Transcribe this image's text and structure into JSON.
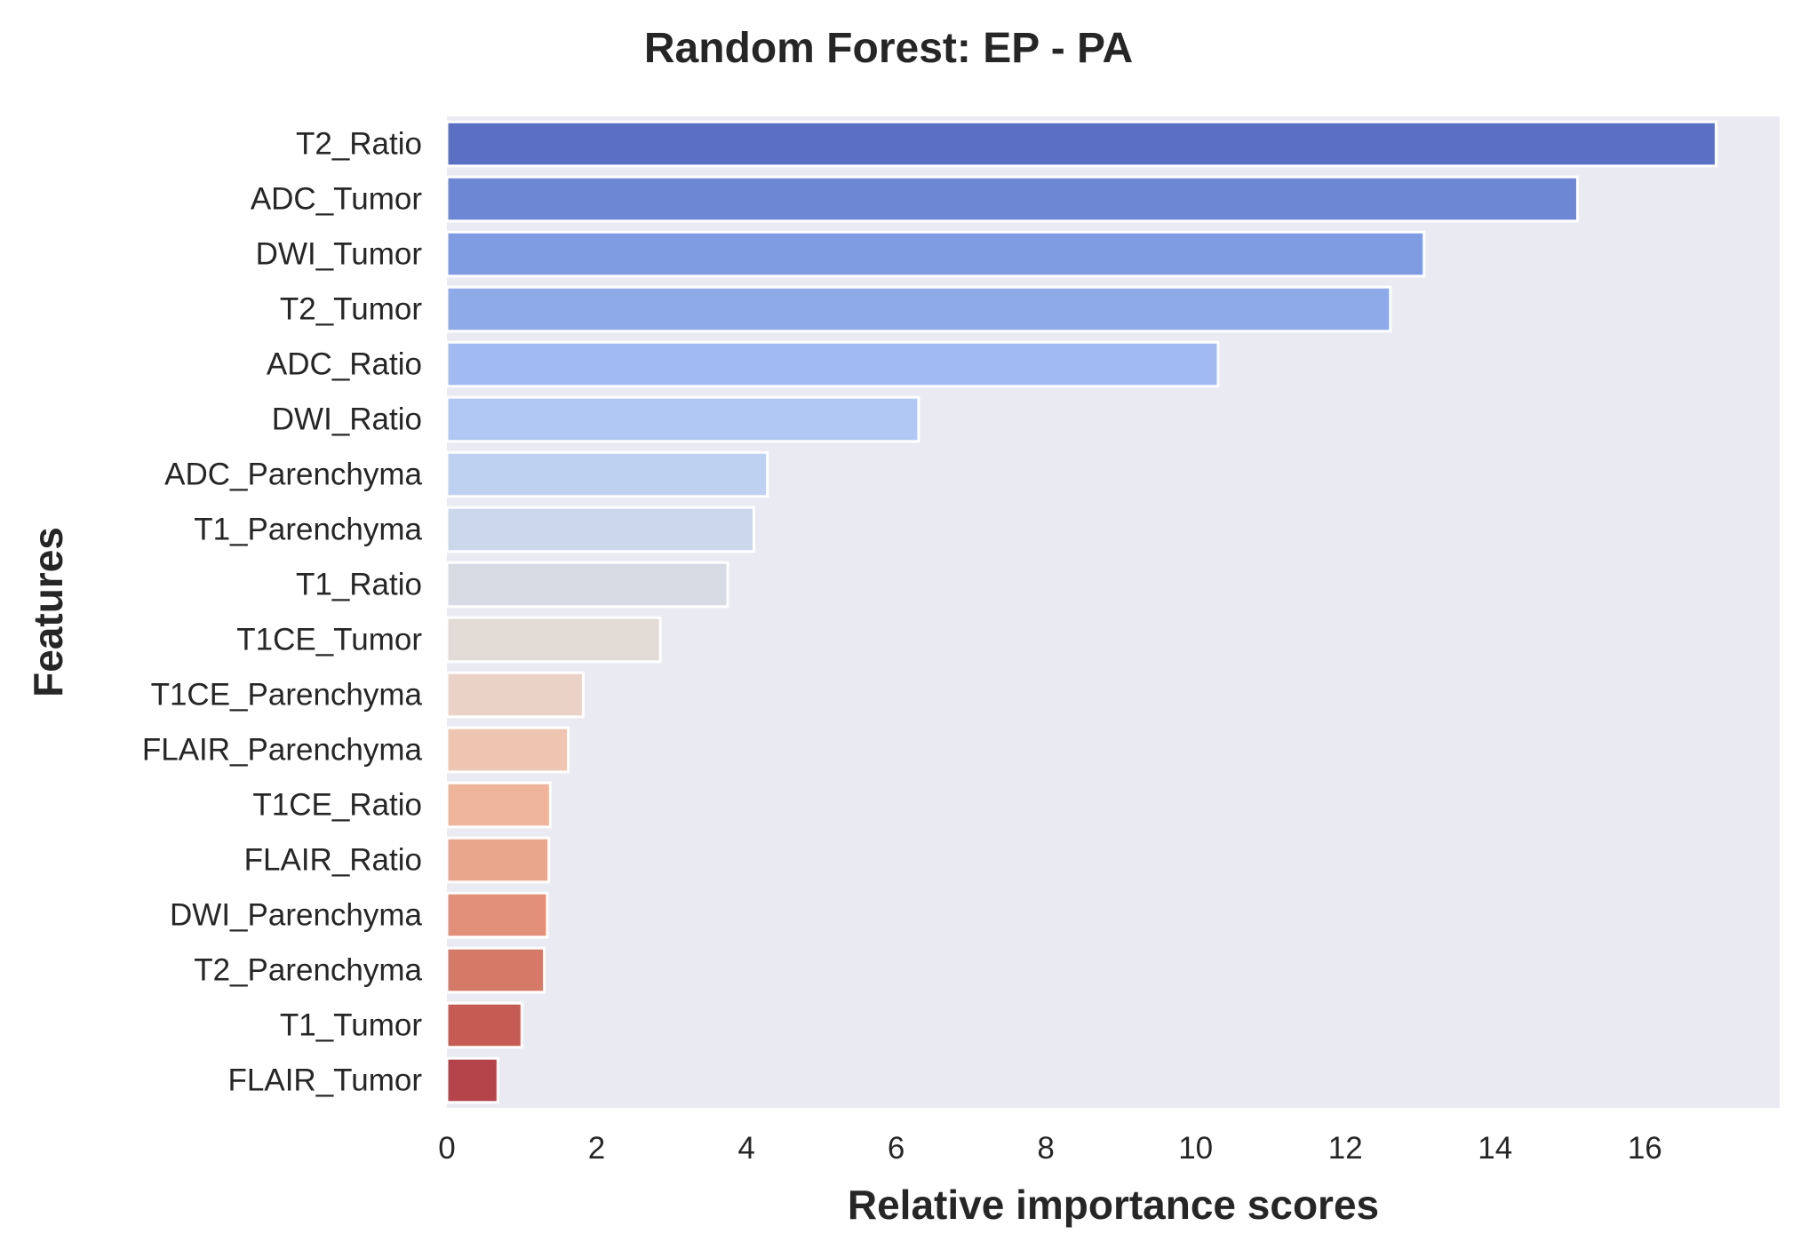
{
  "chart_data": {
    "type": "bar",
    "orientation": "horizontal",
    "title": "Random Forest: EP - PA",
    "xlabel": "Relative importance scores",
    "ylabel": "Features",
    "xlim": [
      0,
      17.8
    ],
    "xticks": [
      0,
      2,
      4,
      6,
      8,
      10,
      12,
      14,
      16
    ],
    "grid": false,
    "categories": [
      "T2_Ratio",
      "ADC_Tumor",
      "DWI_Tumor",
      "T2_Tumor",
      "ADC_Ratio",
      "DWI_Ratio",
      "ADC_Parenchyma",
      "T1_Parenchyma",
      "T1_Ratio",
      "T1CE_Tumor",
      "T1CE_Parenchyma",
      "FLAIR_Parenchyma",
      "T1CE_Ratio",
      "FLAIR_Ratio",
      "DWI_Parenchyma",
      "T2_Parenchyma",
      "T1_Tumor",
      "FLAIR_Tumor"
    ],
    "values": [
      16.95,
      15.1,
      13.05,
      12.6,
      10.3,
      6.3,
      4.28,
      4.1,
      3.75,
      2.85,
      1.82,
      1.62,
      1.38,
      1.36,
      1.34,
      1.3,
      1.0,
      0.68
    ],
    "colors": [
      "#5b70c4",
      "#6e87d5",
      "#7f9be2",
      "#8faae9",
      "#a1baf2",
      "#b1c8f5",
      "#bed1f1",
      "#cbd8ec",
      "#d8dbe4",
      "#e2dbd6",
      "#ebd2c6",
      "#edc5b1",
      "#eeb59b",
      "#e9a68c",
      "#e2907a",
      "#d47a67",
      "#c55b52",
      "#b4434a"
    ],
    "plot_background": "#eaeaf2"
  }
}
